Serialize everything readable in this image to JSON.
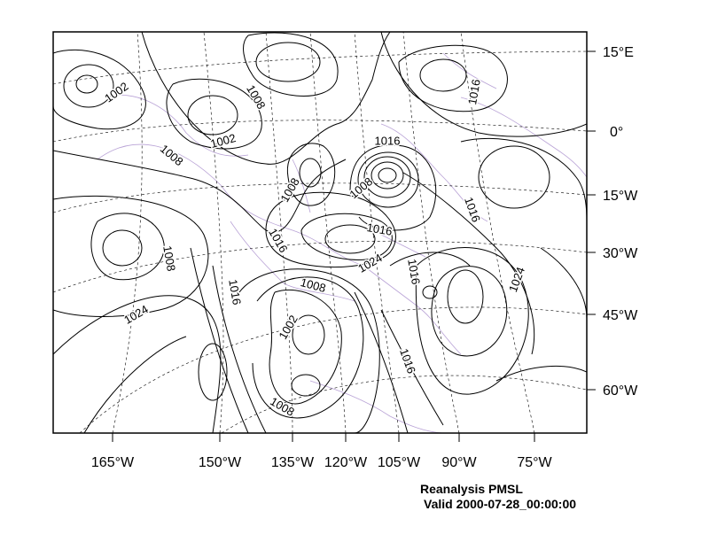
{
  "title": "Reanalysis PMSL",
  "valid_time": "Valid 2000-07-28_00:00:00",
  "lon_labels": [
    "165°W",
    "150°W",
    "135°W",
    "120°W",
    "105°W",
    "90°W",
    "75°W"
  ],
  "lat_labels": [
    "15°E",
    "0°",
    "15°W",
    "30°W",
    "45°W",
    "60°W"
  ],
  "contour_labels": [
    {
      "text": "1002",
      "angle": -35
    },
    {
      "text": "1008",
      "angle": 60
    },
    {
      "text": "1002",
      "angle": -15
    },
    {
      "text": "1008",
      "angle": 40
    },
    {
      "text": "1008",
      "angle": -60
    },
    {
      "text": "1016",
      "angle": 0
    },
    {
      "text": "1008",
      "angle": -40
    },
    {
      "text": "1008",
      "angle": 80
    },
    {
      "text": "1016",
      "angle": 10
    },
    {
      "text": "1016",
      "angle": 60
    },
    {
      "text": "1016",
      "angle": 80
    },
    {
      "text": "1024",
      "angle": -30
    },
    {
      "text": "1016",
      "angle": 80
    },
    {
      "text": "1024",
      "angle": -70
    },
    {
      "text": "1008",
      "angle": 15
    },
    {
      "text": "1016",
      "angle": 70
    },
    {
      "text": "1024",
      "angle": -30
    },
    {
      "text": "1002",
      "angle": -60
    },
    {
      "text": "1016",
      "angle": 70
    },
    {
      "text": "1008",
      "angle": 30
    },
    {
      "text": "1016",
      "angle": -80
    }
  ],
  "colors": {
    "frame": "#000000",
    "contour": "#000000",
    "grid": "#000000",
    "coastline": "#b9a3d6"
  }
}
